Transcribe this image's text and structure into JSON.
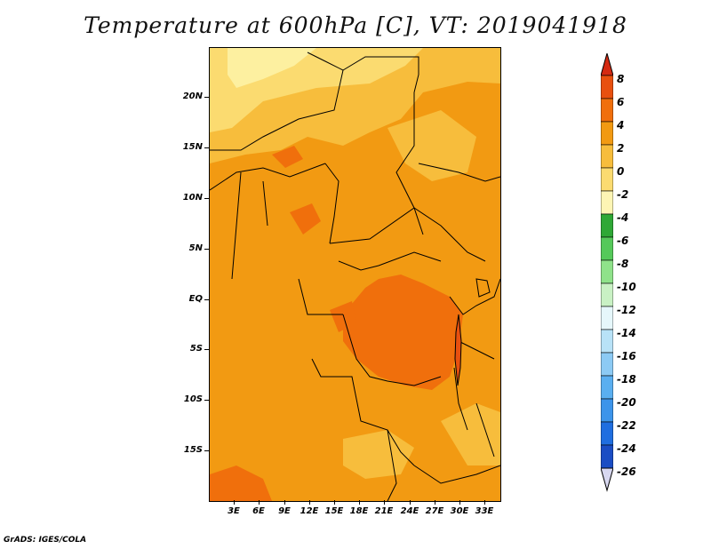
{
  "title": "Temperature at 600hPa [C], VT: 2019041918",
  "footer": "GrADS: IGES/COLA",
  "lat_labels": [
    "20N",
    "15N",
    "10N",
    "5N",
    "EQ",
    "5S",
    "10S",
    "15S"
  ],
  "lon_labels": [
    "3E",
    "6E",
    "9E",
    "12E",
    "15E",
    "18E",
    "21E",
    "24E",
    "27E",
    "30E",
    "33E"
  ],
  "colorbar": {
    "labels": [
      "8",
      "6",
      "4",
      "2",
      "0",
      "-2",
      "-4",
      "-6",
      "-8",
      "-10",
      "-12",
      "-14",
      "-16",
      "-18",
      "-20",
      "-22",
      "-24",
      "-26"
    ],
    "colors": [
      "#d42a12",
      "#e8500f",
      "#f06f0c",
      "#f29a12",
      "#f7bd3c",
      "#fbdb70",
      "#fdf5b4",
      "#2fa836",
      "#55c95a",
      "#8fe28a",
      "#c9f1c4",
      "#e6f7fb",
      "#b8e2f7",
      "#8ccaf4",
      "#5aaff0",
      "#3c94ea",
      "#1f6ee0",
      "#1a4dc4",
      "#172f9c",
      "#10186b"
    ]
  }
}
